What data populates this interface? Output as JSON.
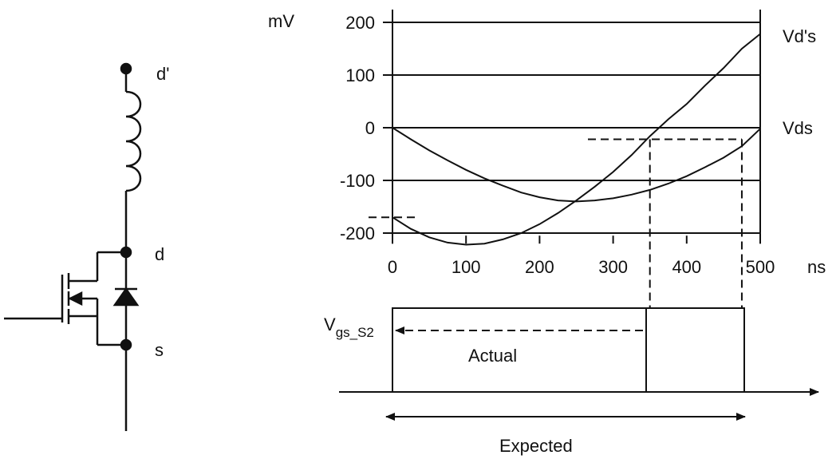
{
  "circuit": {
    "node_d_prime": "d'",
    "node_d": "d",
    "node_s": "s"
  },
  "chart_data": {
    "type": "line",
    "x_unit": "ns",
    "y_unit": "mV",
    "xlim": [
      0,
      500
    ],
    "ylim": [
      -220,
      200
    ],
    "x_ticks": [
      0,
      100,
      200,
      300,
      400,
      500
    ],
    "y_ticks": [
      200,
      100,
      0,
      -100,
      -200
    ],
    "grid": "horizontal",
    "series": [
      {
        "name": "Vd's",
        "x": [
          0,
          25,
          50,
          75,
          100,
          125,
          150,
          175,
          200,
          225,
          250,
          275,
          300,
          325,
          350,
          375,
          400,
          425,
          450,
          475,
          500
        ],
        "y": [
          -170,
          -192,
          -208,
          -218,
          -222,
          -220,
          -212,
          -200,
          -183,
          -162,
          -138,
          -112,
          -84,
          -52,
          -16,
          16,
          45,
          80,
          113,
          150,
          178
        ]
      },
      {
        "name": "Vds",
        "x": [
          0,
          25,
          50,
          75,
          100,
          125,
          150,
          175,
          200,
          225,
          250,
          275,
          300,
          325,
          350,
          375,
          400,
          425,
          450,
          475,
          500
        ],
        "y": [
          0,
          -22,
          -43,
          -62,
          -80,
          -96,
          -110,
          -123,
          -132,
          -138,
          -140,
          -138,
          -134,
          -127,
          -118,
          -106,
          -92,
          -75,
          -57,
          -35,
          -2
        ]
      }
    ],
    "dashed_refs": {
      "y_level": -22,
      "x_actual": 350,
      "x_expected": 475,
      "y_left_marker": -170
    }
  },
  "timing": {
    "signal_label_main": "V",
    "signal_label_sub": "gs_S2",
    "actual_label": "Actual",
    "expected_label": "Expected"
  }
}
